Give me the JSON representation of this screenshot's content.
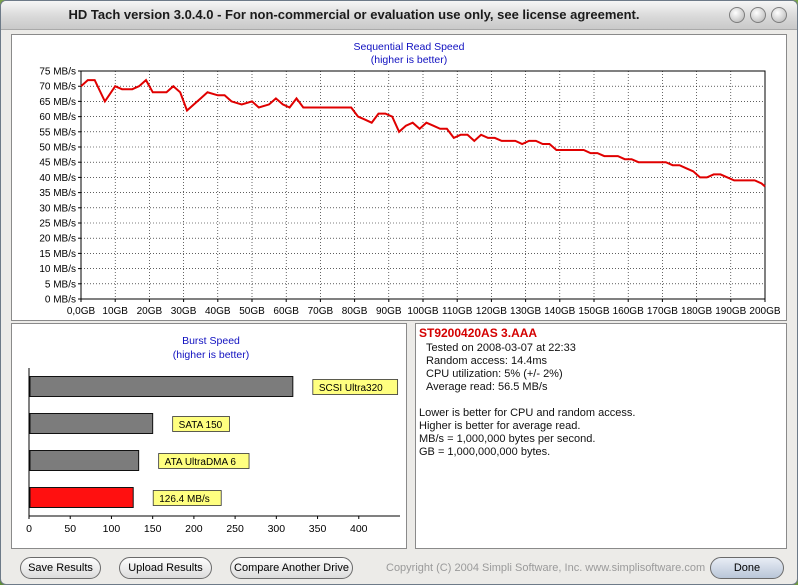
{
  "window": {
    "title": "HD Tach version 3.0.4.0  - For non-commercial or evaluation use only, see license agreement."
  },
  "chart_data": [
    {
      "type": "line",
      "title": "Sequential Read Speed",
      "subtitle": "(higher is better)",
      "x_ticks": [
        "0,0GB",
        "10GB",
        "20GB",
        "30GB",
        "40GB",
        "50GB",
        "60GB",
        "70GB",
        "80GB",
        "90GB",
        "100GB",
        "110GB",
        "120GB",
        "130GB",
        "140GB",
        "150GB",
        "160GB",
        "170GB",
        "180GB",
        "190GB",
        "200GB"
      ],
      "y_ticks": [
        "0 MB/s",
        "5 MB/s",
        "10 MB/s",
        "15 MB/s",
        "20 MB/s",
        "25 MB/s",
        "30 MB/s",
        "35 MB/s",
        "40 MB/s",
        "45 MB/s",
        "50 MB/s",
        "55 MB/s",
        "60 MB/s",
        "65 MB/s",
        "70 MB/s",
        "75 MB/s"
      ],
      "xlim": [
        0,
        200
      ],
      "ylim": [
        0,
        75
      ],
      "grid": true,
      "x_units": "GB",
      "y_units": "MB/s",
      "color": "#e00000",
      "x": [
        0,
        2,
        4,
        7,
        10,
        12,
        15,
        17,
        19,
        21,
        23,
        25,
        27,
        29,
        31,
        33,
        35,
        37,
        40,
        42,
        44,
        47,
        50,
        52,
        55,
        57,
        59,
        61,
        63,
        65,
        67,
        69,
        71,
        73,
        75,
        77,
        79,
        81,
        83,
        85,
        87,
        89,
        91,
        93,
        95,
        97,
        99,
        101,
        103,
        105,
        107,
        109,
        111,
        113,
        115,
        117,
        119,
        121,
        123,
        125,
        127,
        129,
        131,
        133,
        135,
        137,
        139,
        141,
        143,
        145,
        147,
        149,
        151,
        153,
        155,
        157,
        159,
        161,
        163,
        165,
        167,
        169,
        171,
        173,
        175,
        177,
        179,
        181,
        183,
        185,
        187,
        189,
        191,
        193,
        195,
        197,
        199,
        200
      ],
      "y": [
        70,
        72,
        72,
        65,
        70,
        69,
        69,
        70,
        72,
        68,
        68,
        68,
        70,
        68,
        62,
        64,
        66,
        68,
        67,
        67,
        65,
        64,
        65,
        63,
        64,
        66,
        64,
        63,
        66,
        63,
        63,
        63,
        63,
        63,
        63,
        63,
        63,
        60,
        59,
        58,
        61,
        61,
        60,
        55,
        57,
        58,
        56,
        58,
        57,
        56,
        56,
        53,
        54,
        54,
        52,
        54,
        53,
        53,
        52,
        52,
        52,
        51,
        52,
        52,
        51,
        51,
        49,
        49,
        49,
        49,
        49,
        48,
        48,
        47,
        47,
        47,
        46,
        46,
        45,
        45,
        45,
        45,
        45,
        44,
        44,
        43,
        42,
        40,
        40,
        41,
        41,
        40,
        39,
        39,
        39,
        39,
        38,
        37
      ]
    },
    {
      "type": "bar",
      "title": "Burst Speed",
      "subtitle": "(higher is better)",
      "orientation": "horizontal",
      "xlim": [
        0,
        450
      ],
      "x_ticks": [
        "0",
        "50",
        "100",
        "150",
        "200",
        "250",
        "300",
        "350",
        "400"
      ],
      "bars": [
        {
          "label": "SCSI Ultra320",
          "value": 320,
          "color": "#7c7c7c"
        },
        {
          "label": "SATA 150",
          "value": 150,
          "color": "#7c7c7c"
        },
        {
          "label": "ATA UltraDMA 6",
          "value": 133,
          "color": "#7c7c7c"
        },
        {
          "label": "126.4 MB/s",
          "value": 126.4,
          "color": "#ff1010"
        }
      ]
    }
  ],
  "info": {
    "drive": "ST9200420AS 3.AAA",
    "lines": [
      "Tested on 2008-03-07 at 22:33",
      "Random access: 14.4ms",
      "CPU utilization: 5% (+/- 2%)",
      "Average read: 56.5 MB/s"
    ],
    "notes": [
      "Lower is better for CPU and random access.",
      "Higher is better for average read.",
      "MB/s = 1,000,000 bytes per second.",
      "GB = 1,000,000,000 bytes."
    ]
  },
  "buttons": {
    "save": "Save Results",
    "upload": "Upload Results",
    "compare": "Compare Another Drive",
    "done": "Done"
  },
  "copyright": "Copyright (C) 2004 Simpli Software, Inc. www.simplisoftware.com"
}
